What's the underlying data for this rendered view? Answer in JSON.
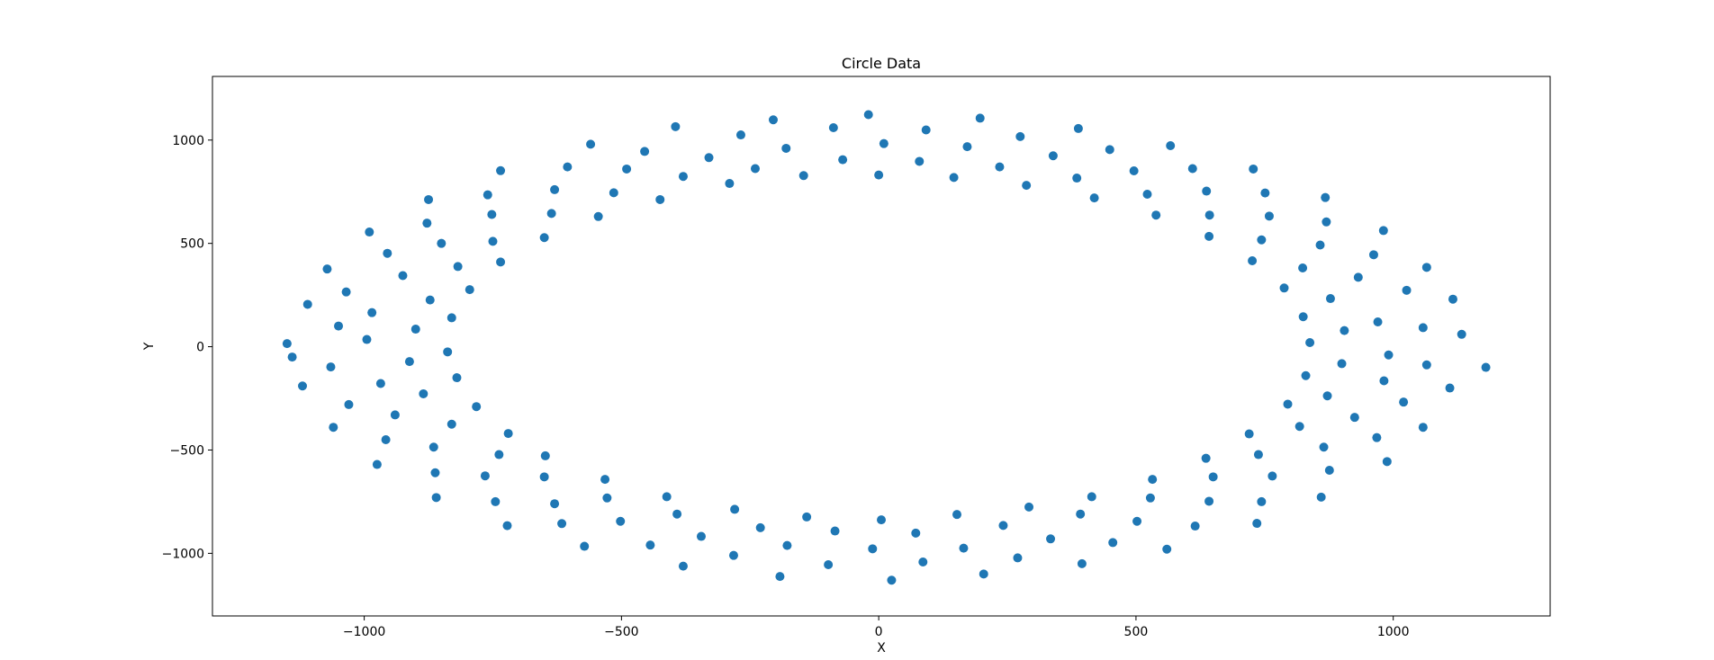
{
  "chart_data": {
    "type": "scatter",
    "title": "Circle Data",
    "x_label": "X",
    "y_label": "Y",
    "color": "#1f77b4",
    "xlim": [
      -1295,
      1305
    ],
    "ylim": [
      -1303,
      1308
    ],
    "xticks": [
      {
        "value": -1000,
        "label": "−1000"
      },
      {
        "value": -500,
        "label": "−500"
      },
      0,
      500,
      1000
    ],
    "yticks": [
      {
        "value": -1000,
        "label": "−1000"
      },
      {
        "value": -500,
        "label": "−500"
      },
      0,
      500,
      1000
    ],
    "x": [
      838,
      991,
      1133,
      905,
      1058,
      825,
      970,
      1116,
      878,
      1026,
      788,
      932,
      1065,
      824,
      962,
      726,
      858,
      981,
      744,
      870,
      642,
      759,
      868,
      643,
      751,
      539,
      637,
      728,
      522,
      610,
      419,
      496,
      567,
      385,
      449,
      287,
      339,
      388,
      235,
      275,
      146,
      172,
      197,
      79,
      92,
      0,
      10,
      -20,
      -146,
      -180,
      -205,
      -70,
      -88,
      -290,
      -330,
      -395,
      -240,
      -268,
      -425,
      -490,
      -560,
      -380,
      -455,
      -545,
      -630,
      -735,
      -515,
      -605,
      -650,
      -752,
      -875,
      -636,
      -760,
      -735,
      -850,
      -990,
      -750,
      -878,
      -795,
      -925,
      -1072,
      -818,
      -955,
      -830,
      -985,
      -1110,
      -872,
      -1035,
      -900,
      -1050,
      -1150,
      -838,
      -995,
      -1140,
      -912,
      -1065,
      -820,
      -968,
      -1120,
      -885,
      -1030,
      -782,
      -940,
      -1060,
      -830,
      -958,
      -720,
      -865,
      -975,
      -738,
      -862,
      -648,
      -765,
      -860,
      -650,
      -745,
      -532,
      -630,
      -722,
      -528,
      -616,
      -412,
      -502,
      -572,
      -392,
      -444,
      -280,
      -345,
      -380,
      -230,
      -282,
      -140,
      -178,
      -192,
      -85,
      -98,
      5,
      -12,
      25,
      152,
      165,
      204,
      72,
      86,
      292,
      334,
      395,
      242,
      270,
      414,
      502,
      560,
      392,
      455,
      532,
      642,
      735,
      528,
      615,
      636,
      765,
      860,
      650,
      744,
      720,
      865,
      988,
      738,
      876,
      795,
      925,
      1058,
      818,
      968,
      830,
      982,
      1110,
      872,
      1020,
      900,
      1065,
      1180
    ],
    "values": [
      20,
      -40,
      60,
      78,
      92,
      145,
      120,
      230,
      233,
      273,
      284,
      336,
      384,
      381,
      445,
      416,
      492,
      562,
      517,
      604,
      534,
      632,
      722,
      637,
      744,
      637,
      753,
      860,
      738,
      862,
      720,
      851,
      973,
      816,
      954,
      781,
      924,
      1056,
      870,
      1017,
      819,
      968,
      1106,
      897,
      1049,
      831,
      983,
      1123,
      828,
      960,
      1098,
      905,
      1060,
      790,
      915,
      1065,
      862,
      1025,
      712,
      860,
      980,
      824,
      945,
      630,
      760,
      852,
      745,
      870,
      528,
      640,
      712,
      645,
      735,
      410,
      500,
      555,
      510,
      598,
      276,
      344,
      376,
      388,
      452,
      140,
      165,
      205,
      226,
      265,
      85,
      100,
      15,
      -25,
      35,
      -50,
      -72,
      -98,
      -150,
      -178,
      -190,
      -228,
      -280,
      -290,
      -330,
      -390,
      -375,
      -450,
      -420,
      -486,
      -570,
      -522,
      -610,
      -528,
      -625,
      -730,
      -630,
      -750,
      -642,
      -760,
      -866,
      -732,
      -856,
      -726,
      -845,
      -966,
      -810,
      -960,
      -787,
      -918,
      -1062,
      -876,
      -1010,
      -824,
      -962,
      -1112,
      -892,
      -1055,
      -838,
      -978,
      -1130,
      -812,
      -975,
      -1100,
      -902,
      -1042,
      -776,
      -930,
      -1050,
      -865,
      -1022,
      -726,
      -845,
      -980,
      -810,
      -948,
      -642,
      -748,
      -855,
      -732,
      -868,
      -540,
      -626,
      -728,
      -630,
      -750,
      -422,
      -486,
      -556,
      -522,
      -598,
      -278,
      -342,
      -390,
      -386,
      -440,
      -140,
      -165,
      -200,
      -238,
      -268,
      -82,
      -88,
      -100
    ]
  }
}
